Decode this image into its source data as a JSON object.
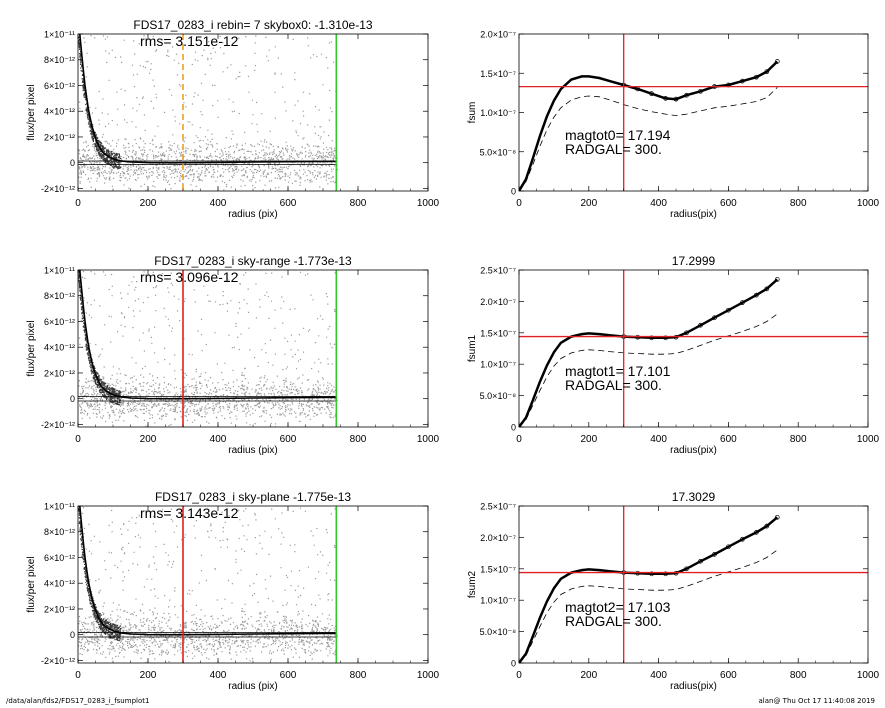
{
  "footer": {
    "path": "/data/alan/fds2/FDS17_0283_i_fsumplot1",
    "stamp": "alan@  Thu Oct 17 11:40:08 2019"
  },
  "chart_data": [
    {
      "type": "scatter",
      "title": "FDS17_0283_i rebin= 7    skybox0: -1.310e-13",
      "annotation": "rms= 3.151e-12",
      "xlabel": "radius (pix)",
      "ylabel": "flux/per pixel",
      "xlim": [
        0,
        1000
      ],
      "ylim": [
        -2.2e-12,
        1e-11
      ],
      "xticks": [
        "0",
        "200",
        "400",
        "600",
        "800",
        "1000"
      ],
      "yticks": [
        "-2×10⁻¹²",
        "0",
        "2×10⁻¹²",
        "4×10⁻¹²",
        "6×10⁻¹²",
        "8×10⁻¹²",
        "1×10⁻¹¹"
      ],
      "ytick_values": [
        -2e-12,
        0,
        2e-12,
        4e-12,
        6e-12,
        8e-12,
        1e-11
      ],
      "profile_x": [
        5,
        10,
        15,
        20,
        25,
        30,
        40,
        50,
        60,
        70,
        80,
        100,
        120,
        150,
        200,
        250,
        300,
        400,
        500,
        600,
        700,
        740
      ],
      "profile_y": [
        1e-11,
        8.6e-12,
        7.2e-12,
        6e-12,
        5e-12,
        4.1e-12,
        2.8e-12,
        1.9e-12,
        1.25e-12,
        8.5e-13,
        6e-13,
        3e-13,
        1.5e-13,
        5e-14,
        1e-14,
        0,
        0,
        2e-14,
        5e-14,
        8e-14,
        1e-13,
        1e-13
      ],
      "vlines": [
        {
          "x": 300,
          "color": "#f0a020",
          "style": "dashed"
        },
        {
          "x": 738,
          "color": "#2ecc2e",
          "style": "solid"
        }
      ],
      "skyband": [
        -1.31e-13,
        1.31e-13
      ],
      "grid": false
    },
    {
      "type": "line",
      "title": "",
      "xlabel": "radius(pix)",
      "ylabel": "fsum",
      "xlim": [
        0,
        1000
      ],
      "ylim": [
        0,
        2e-07
      ],
      "xticks": [
        "0",
        "200",
        "400",
        "600",
        "800",
        "1000"
      ],
      "yticks": [
        "0",
        "5.0×10⁻⁸",
        "1.0×10⁻⁷",
        "1.5×10⁻⁷",
        "2.0×10⁻⁷"
      ],
      "ytick_values": [
        0,
        5e-08,
        1e-07,
        1.5e-07,
        2e-07
      ],
      "x": [
        0,
        20,
        40,
        60,
        80,
        100,
        120,
        150,
        180,
        200,
        230,
        260,
        300,
        340,
        380,
        420,
        450,
        480,
        520,
        560,
        600,
        640,
        680,
        710,
        740
      ],
      "y": [
        0,
        1.5e-08,
        4.2e-08,
        7e-08,
        9.5e-08,
        1.15e-07,
        1.3e-07,
        1.42e-07,
        1.46e-07,
        1.46e-07,
        1.44e-07,
        1.4e-07,
        1.35e-07,
        1.3e-07,
        1.24e-07,
        1.18e-07,
        1.17e-07,
        1.22e-07,
        1.27e-07,
        1.33e-07,
        1.35e-07,
        1.4e-07,
        1.45e-07,
        1.52e-07,
        1.65e-07
      ],
      "dashed_y": [
        0,
        1.2e-08,
        3.4e-08,
        5.7e-08,
        7.8e-08,
        9.4e-08,
        1.06e-07,
        1.16e-07,
        1.2e-07,
        1.21e-07,
        1.2e-07,
        1.16e-07,
        1.1e-07,
        1.05e-07,
        1.01e-07,
        9.8e-08,
        9.6e-08,
        9.8e-08,
        1.02e-07,
        1.06e-07,
        1.08e-07,
        1.11e-07,
        1.14e-07,
        1.19e-07,
        1.32e-07
      ],
      "hline": 1.33e-07,
      "vline": 300,
      "annotation_lines": [
        "magtot0=  17.194",
        "RADGAL=    300."
      ],
      "grid": false
    },
    {
      "type": "scatter",
      "title": "FDS17_0283_i sky-range -1.773e-13",
      "annotation": "rms= 3.096e-12",
      "xlabel": "radius (pix)",
      "ylabel": "flux/per pixel",
      "xlim": [
        0,
        1000
      ],
      "ylim": [
        -2.2e-12,
        1e-11
      ],
      "xticks": [
        "0",
        "200",
        "400",
        "600",
        "800",
        "1000"
      ],
      "yticks": [
        "-2×10⁻¹²",
        "0",
        "2×10⁻¹²",
        "4×10⁻¹²",
        "6×10⁻¹²",
        "8×10⁻¹²",
        "1×10⁻¹¹"
      ],
      "ytick_values": [
        -2e-12,
        0,
        2e-12,
        4e-12,
        6e-12,
        8e-12,
        1e-11
      ],
      "profile_x": [
        5,
        10,
        15,
        20,
        25,
        30,
        40,
        50,
        60,
        70,
        80,
        100,
        120,
        150,
        200,
        250,
        300,
        400,
        500,
        600,
        700,
        740
      ],
      "profile_y": [
        1e-11,
        8.6e-12,
        7.2e-12,
        6e-12,
        5e-12,
        4.1e-12,
        2.8e-12,
        1.9e-12,
        1.25e-12,
        8.5e-13,
        6e-13,
        3e-13,
        1.5e-13,
        5e-14,
        1e-14,
        0,
        0,
        2e-14,
        5e-14,
        8e-14,
        1e-13,
        1e-13
      ],
      "vlines": [
        {
          "x": 300,
          "color": "#e02020",
          "style": "solid"
        },
        {
          "x": 738,
          "color": "#2ecc2e",
          "style": "solid"
        }
      ],
      "skyband": [
        -1.773e-13,
        1.773e-13
      ],
      "grid": false
    },
    {
      "type": "line",
      "title": "17.2999",
      "xlabel": "radius(pix)",
      "ylabel": "fsum1",
      "xlim": [
        0,
        1000
      ],
      "ylim": [
        0,
        2.5e-07
      ],
      "xticks": [
        "0",
        "200",
        "400",
        "600",
        "800",
        "1000"
      ],
      "yticks": [
        "0",
        "5.0×10⁻⁸",
        "1.0×10⁻⁷",
        "1.5×10⁻⁷",
        "2.0×10⁻⁷",
        "2.5×10⁻⁷"
      ],
      "ytick_values": [
        0,
        5e-08,
        1e-07,
        1.5e-07,
        2e-07,
        2.5e-07
      ],
      "x": [
        0,
        20,
        40,
        60,
        80,
        100,
        120,
        150,
        180,
        200,
        230,
        260,
        300,
        340,
        380,
        420,
        450,
        480,
        520,
        560,
        600,
        640,
        680,
        710,
        740
      ],
      "y": [
        0,
        1.5e-08,
        4.3e-08,
        7.2e-08,
        9.8e-08,
        1.19e-07,
        1.34e-07,
        1.44e-07,
        1.48e-07,
        1.49e-07,
        1.48e-07,
        1.46e-07,
        1.44e-07,
        1.43e-07,
        1.42e-07,
        1.42e-07,
        1.43e-07,
        1.5e-07,
        1.62e-07,
        1.74e-07,
        1.86e-07,
        1.98e-07,
        2.1e-07,
        2.2e-07,
        2.35e-07
      ],
      "dashed_y": [
        0,
        1.2e-08,
        3.5e-08,
        5.8e-08,
        8e-08,
        9.7e-08,
        1.09e-07,
        1.18e-07,
        1.22e-07,
        1.23e-07,
        1.22e-07,
        1.2e-07,
        1.18e-07,
        1.17e-07,
        1.16e-07,
        1.16e-07,
        1.17e-07,
        1.22e-07,
        1.3e-07,
        1.38e-07,
        1.45e-07,
        1.52e-07,
        1.6e-07,
        1.68e-07,
        1.8e-07
      ],
      "hline": 1.44e-07,
      "vline": 300,
      "annotation_lines": [
        "magtot1=  17.101",
        "RADGAL=    300."
      ],
      "grid": false
    },
    {
      "type": "scatter",
      "title": "FDS17_0283_i sky-plane -1.775e-13",
      "annotation": "rms= 3.143e-12",
      "xlabel": "radius (pix)",
      "ylabel": "flux/per pixel",
      "xlim": [
        0,
        1000
      ],
      "ylim": [
        -2.2e-12,
        1e-11
      ],
      "xticks": [
        "0",
        "200",
        "400",
        "600",
        "800",
        "1000"
      ],
      "yticks": [
        "-2×10⁻¹²",
        "0",
        "2×10⁻¹²",
        "4×10⁻¹²",
        "6×10⁻¹²",
        "8×10⁻¹²",
        "1×10⁻¹¹"
      ],
      "ytick_values": [
        -2e-12,
        0,
        2e-12,
        4e-12,
        6e-12,
        8e-12,
        1e-11
      ],
      "profile_x": [
        5,
        10,
        15,
        20,
        25,
        30,
        40,
        50,
        60,
        70,
        80,
        100,
        120,
        150,
        200,
        250,
        300,
        400,
        500,
        600,
        700,
        740
      ],
      "profile_y": [
        1e-11,
        8.6e-12,
        7.2e-12,
        6e-12,
        5e-12,
        4.1e-12,
        2.8e-12,
        1.9e-12,
        1.25e-12,
        8.5e-13,
        6e-13,
        3e-13,
        1.5e-13,
        5e-14,
        1e-14,
        0,
        0,
        2e-14,
        5e-14,
        8e-14,
        1e-13,
        1e-13
      ],
      "vlines": [
        {
          "x": 300,
          "color": "#e02020",
          "style": "solid"
        },
        {
          "x": 738,
          "color": "#2ecc2e",
          "style": "solid"
        }
      ],
      "skyband": [
        -1.775e-13,
        1.775e-13
      ],
      "grid": false
    },
    {
      "type": "line",
      "title": "17.3029",
      "xlabel": "radius(pix)",
      "ylabel": "fsum2",
      "xlim": [
        0,
        1000
      ],
      "ylim": [
        0,
        2.5e-07
      ],
      "xticks": [
        "0",
        "200",
        "400",
        "600",
        "800",
        "1000"
      ],
      "yticks": [
        "0",
        "5.0×10⁻⁸",
        "1.0×10⁻⁷",
        "1.5×10⁻⁷",
        "2.0×10⁻⁷",
        "2.5×10⁻⁷"
      ],
      "ytick_values": [
        0,
        5e-08,
        1e-07,
        1.5e-07,
        2e-07,
        2.5e-07
      ],
      "x": [
        0,
        20,
        40,
        60,
        80,
        100,
        120,
        150,
        180,
        200,
        230,
        260,
        300,
        340,
        380,
        420,
        450,
        480,
        520,
        560,
        600,
        640,
        680,
        710,
        740
      ],
      "y": [
        0,
        1.5e-08,
        4.3e-08,
        7.2e-08,
        9.8e-08,
        1.19e-07,
        1.34e-07,
        1.44e-07,
        1.48e-07,
        1.49e-07,
        1.48e-07,
        1.46e-07,
        1.44e-07,
        1.43e-07,
        1.42e-07,
        1.42e-07,
        1.43e-07,
        1.5e-07,
        1.62e-07,
        1.73e-07,
        1.85e-07,
        1.97e-07,
        2.08e-07,
        2.18e-07,
        2.32e-07
      ],
      "dashed_y": [
        0,
        1.2e-08,
        3.5e-08,
        5.8e-08,
        8e-08,
        9.7e-08,
        1.09e-07,
        1.18e-07,
        1.22e-07,
        1.23e-07,
        1.22e-07,
        1.2e-07,
        1.18e-07,
        1.17e-07,
        1.16e-07,
        1.16e-07,
        1.17e-07,
        1.22e-07,
        1.3e-07,
        1.38e-07,
        1.45e-07,
        1.52e-07,
        1.6e-07,
        1.68e-07,
        1.8e-07
      ],
      "hline": 1.44e-07,
      "vline": 300,
      "annotation_lines": [
        "magtot2=  17.103",
        "RADGAL=    300."
      ],
      "grid": false
    }
  ]
}
